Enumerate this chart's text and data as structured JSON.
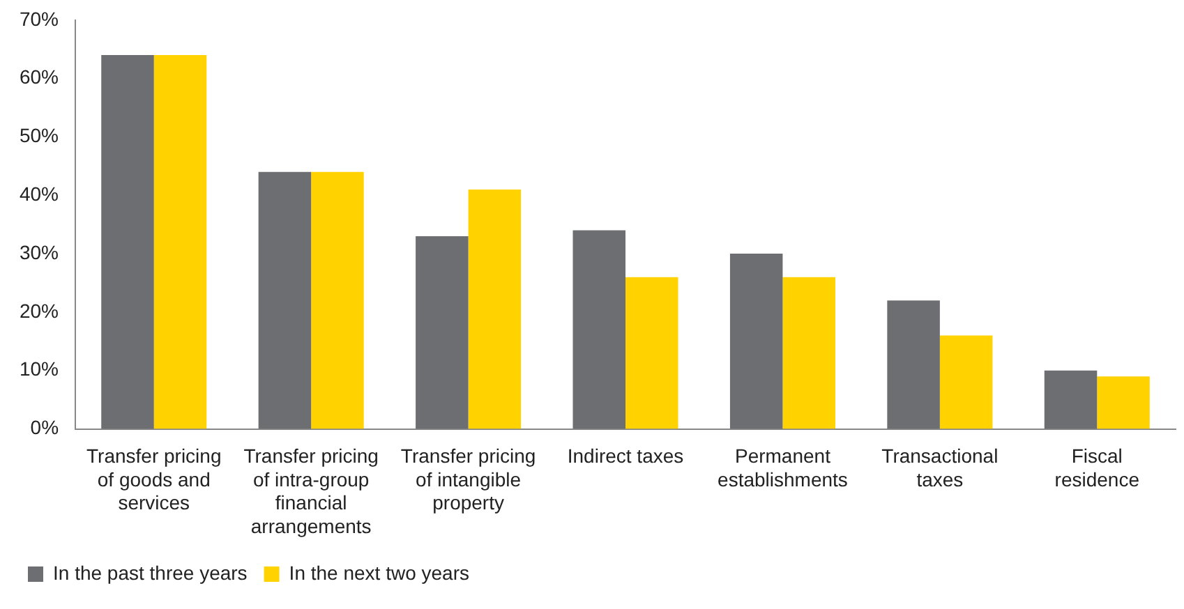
{
  "chart_data": {
    "type": "bar",
    "categories": [
      "Transfer pricing of goods and services",
      "Transfer pricing of intra-group financial arrangements",
      "Transfer pricing of intangible property",
      "Indirect taxes",
      "Permanent establishments",
      "Transactional taxes",
      "Fiscal residence"
    ],
    "series": [
      {
        "name": "In the past three years",
        "color": "#6d6e71",
        "values": [
          64,
          44,
          33,
          34,
          30,
          22,
          10
        ]
      },
      {
        "name": "In the next two years",
        "color": "#ffd200",
        "values": [
          64,
          44,
          41,
          26,
          26,
          16,
          9
        ]
      }
    ],
    "ylim": [
      0,
      70
    ],
    "yticks": [
      {
        "value": 0,
        "label": "0%"
      },
      {
        "value": 10,
        "label": "10%"
      },
      {
        "value": 20,
        "label": "20%"
      },
      {
        "value": 30,
        "label": "30%"
      },
      {
        "value": 40,
        "label": "40%"
      },
      {
        "value": 50,
        "label": "50%"
      },
      {
        "value": 60,
        "label": "60%"
      },
      {
        "value": 70,
        "label": "70%"
      }
    ],
    "grid": false,
    "legend": "bottom left"
  }
}
